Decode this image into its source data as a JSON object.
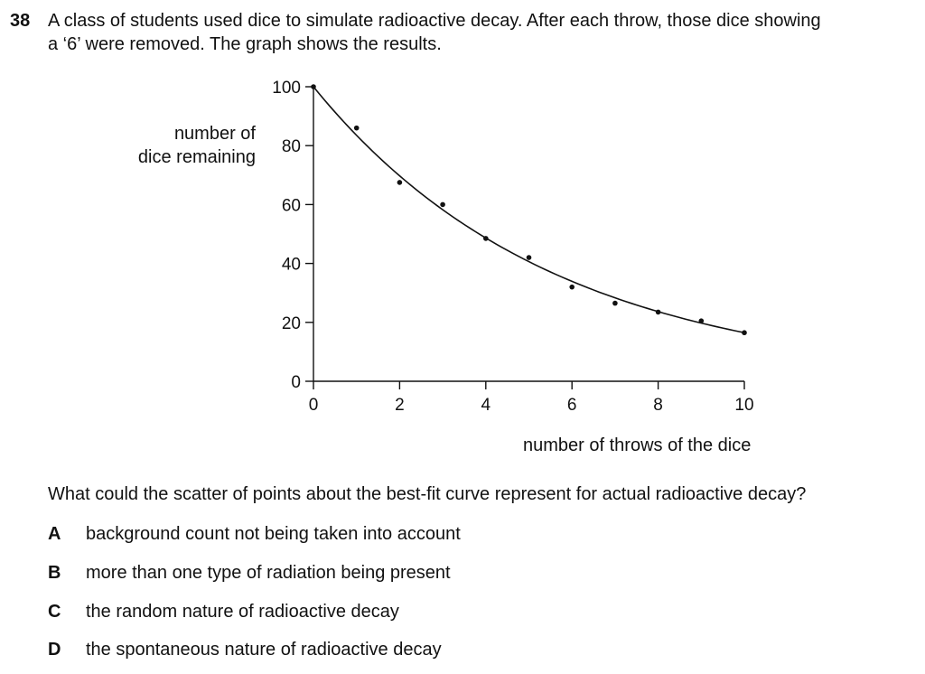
{
  "question": {
    "number": "38",
    "stem_lines": [
      "A class of students used dice to simulate radioactive decay. After each throw, those dice showing",
      "a ‘6’ were removed. The graph shows the results."
    ],
    "prompt": "What could the scatter of points about the best-fit curve represent for actual radioactive decay?",
    "options": [
      {
        "letter": "A",
        "text": "background count not being taken into account"
      },
      {
        "letter": "B",
        "text": "more than one type of radiation being present"
      },
      {
        "letter": "C",
        "text": "the random nature of radioactive decay"
      },
      {
        "letter": "D",
        "text": "the spontaneous nature of radioactive decay"
      }
    ]
  },
  "chart_data": {
    "type": "scatter",
    "ylabel_lines": [
      "number of",
      "dice remaining"
    ],
    "xlabel": "number of throws of the dice",
    "xlim": [
      0,
      10
    ],
    "ylim": [
      0,
      100
    ],
    "x_ticks": [
      0,
      2,
      4,
      6,
      8,
      10
    ],
    "y_ticks": [
      0,
      20,
      40,
      60,
      80,
      100
    ],
    "x_tick_labels": [
      "0",
      "2",
      "4",
      "6",
      "8",
      "10"
    ],
    "y_tick_labels": [
      "0",
      "20",
      "40",
      "60",
      "80",
      "100"
    ],
    "grid": false,
    "points": [
      {
        "x": 0,
        "y": 100
      },
      {
        "x": 1,
        "y": 86
      },
      {
        "x": 2,
        "y": 67.5
      },
      {
        "x": 3,
        "y": 60
      },
      {
        "x": 4,
        "y": 48.5
      },
      {
        "x": 5,
        "y": 42
      },
      {
        "x": 6,
        "y": 32
      },
      {
        "x": 7,
        "y": 26.5
      },
      {
        "x": 8,
        "y": 23.5
      },
      {
        "x": 9,
        "y": 20.5
      },
      {
        "x": 10,
        "y": 16.5
      }
    ],
    "best_fit_curve": {
      "type": "exponential",
      "start_y": 100,
      "end_y": 16.5
    }
  }
}
